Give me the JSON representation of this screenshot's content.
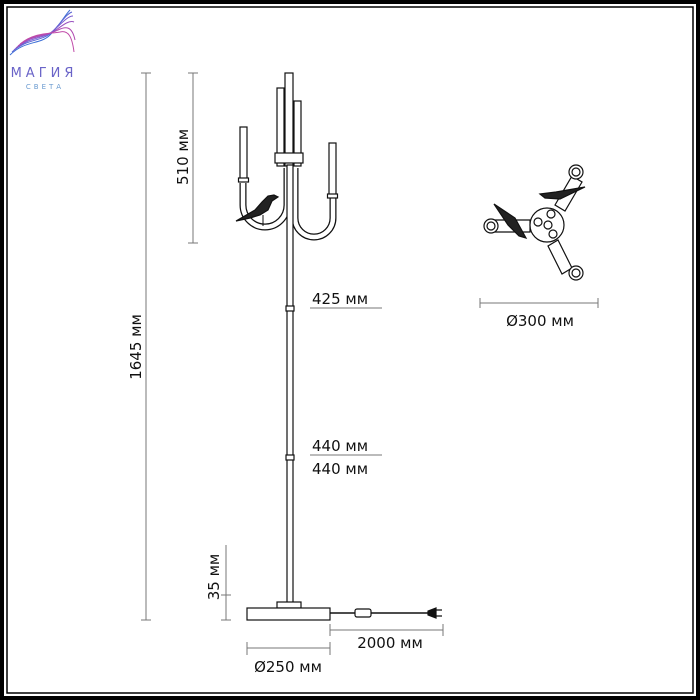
{
  "logo": {
    "line1": "МАГИЯ",
    "line2": "СВЕТА",
    "colors": [
      "#3d6fd6",
      "#8a5ad0",
      "#c04aa8"
    ]
  },
  "dimensions": {
    "total_height": "1645 мм",
    "shade_height": "510 мм",
    "segment_top": "425 мм",
    "segment_mid": "440 мм",
    "segment_low": "440 мм",
    "base_height": "35 мм",
    "base_diameter": "Ø250 мм",
    "cord_length": "2000 мм",
    "top_diameter": "Ø300 мм"
  },
  "colors": {
    "line": "#111111",
    "dim_line": "#777777",
    "frame": "#000000"
  }
}
